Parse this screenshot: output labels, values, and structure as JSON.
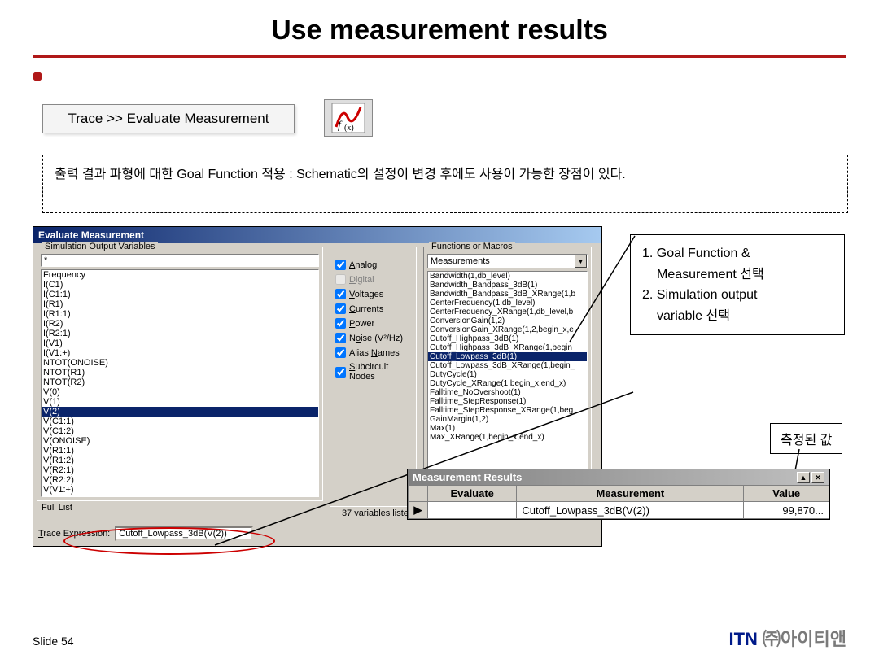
{
  "title": "Use measurement results",
  "traceLabel": "Trace >> Evaluate Measurement",
  "description": "출력 결과 파형에 대한 Goal Function 적용 : Schematic의 설정이 변경 후에도 사용이 가능한 장점이 있다.",
  "callout1": {
    "line1": "1. Goal Function &",
    "line2": "Measurement 선택",
    "line3": "2. Simulation output",
    "line4": "variable 선택"
  },
  "callout2": "측정된 값",
  "win": {
    "title": "Evaluate Measurement",
    "leftGroup": "Simulation Output Variables",
    "filterValue": "*",
    "vars": [
      "Frequency",
      "I(C1)",
      "I(C1:1)",
      "I(R1)",
      "I(R1:1)",
      "I(R2)",
      "I(R2:1)",
      "I(V1)",
      "I(V1:+)",
      "NTOT(ONOISE)",
      "NTOT(R1)",
      "NTOT(R2)",
      "V(0)",
      "V(1)",
      "V(2)",
      "V(C1:1)",
      "V(C1:2)",
      "V(ONOISE)",
      "V(R1:1)",
      "V(R1:2)",
      "V(R2:1)",
      "V(R2:2)",
      "V(V1:+)"
    ],
    "varsSelectedIndex": 14,
    "checks": [
      {
        "label": "Analog",
        "checked": true,
        "disabled": false,
        "u": "A"
      },
      {
        "label": "Digital",
        "checked": false,
        "disabled": true,
        "u": "D"
      },
      {
        "label": "Voltages",
        "checked": true,
        "disabled": false,
        "u": "V"
      },
      {
        "label": "Currents",
        "checked": true,
        "disabled": false,
        "u": "C"
      },
      {
        "label": "Power",
        "checked": true,
        "disabled": false,
        "u": "P"
      },
      {
        "label": "Noise (V²/Hz)",
        "checked": true,
        "disabled": false,
        "u": "o"
      },
      {
        "label": "Alias Names",
        "checked": true,
        "disabled": false,
        "u": "N"
      },
      {
        "label": "Subcircuit Nodes",
        "checked": true,
        "disabled": false,
        "u": "S"
      }
    ],
    "countLabel": "37 variables listed",
    "fullList": "Full List",
    "rightGroup": "Functions or Macros",
    "comboValue": "Measurements",
    "fns": [
      "Bandwidth(1,db_level)",
      "Bandwidth_Bandpass_3dB(1)",
      "Bandwidth_Bandpass_3dB_XRange(1,b",
      "CenterFrequency(1,db_level)",
      "CenterFrequency_XRange(1,db_level,b",
      "ConversionGain(1,2)",
      "ConversionGain_XRange(1,2,begin_x,e",
      "Cutoff_Highpass_3dB(1)",
      "Cutoff_Highpass_3dB_XRange(1,begin",
      "Cutoff_Lowpass_3dB(1)",
      "Cutoff_Lowpass_3dB_XRange(1,begin_",
      "DutyCycle(1)",
      "DutyCycle_XRange(1,begin_x,end_x)",
      "Falltime_NoOvershoot(1)",
      "Falltime_StepResponse(1)",
      "Falltime_StepResponse_XRange(1,beg",
      "GainMargin(1,2)",
      "Max(1)",
      "Max_XRange(1,begin_x,end_x)"
    ],
    "fnsSelectedIndex": 9,
    "traceExprLabel": "Trace Expression:",
    "traceExprValue": "Cutoff_Lowpass_3dB(V(2))"
  },
  "mr": {
    "title": "Measurement Results",
    "colEvaluate": "Evaluate",
    "colMeasurement": "Measurement",
    "colValue": "Value",
    "rowMeasurement": "Cutoff_Lowpass_3dB(V(2))",
    "rowValue": "99,870..."
  },
  "slideNum": "Slide 54",
  "brandITN": "ITN",
  "brandKO": " ㈜아이티앤"
}
